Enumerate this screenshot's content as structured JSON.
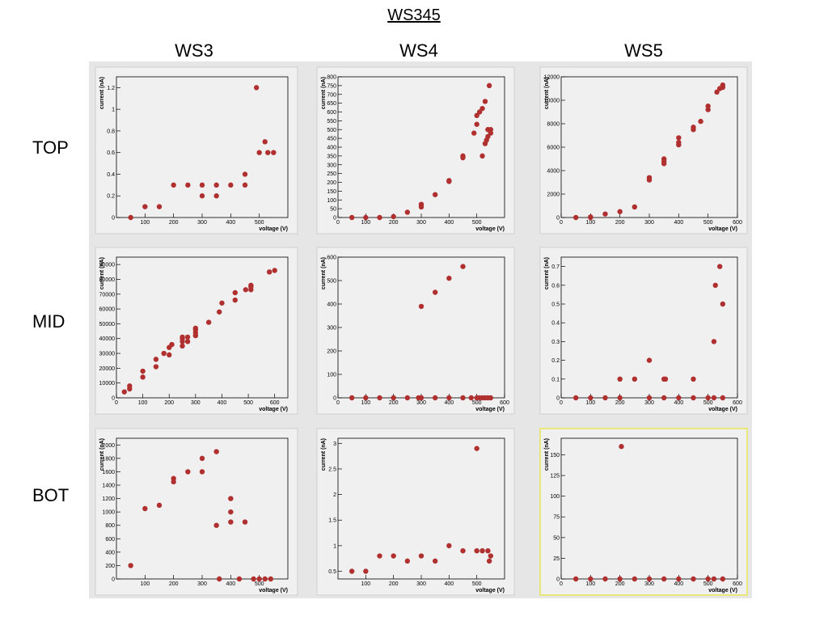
{
  "title": "WS345",
  "columns": [
    "WS3",
    "WS4",
    "WS5"
  ],
  "rows": [
    "TOP",
    "MID",
    "BOT"
  ],
  "colors": {
    "marker": "#b03030",
    "panel_bg": "#f0f0f0",
    "grid_bg": "#e6e6e6",
    "highlight": "#e8e87a"
  },
  "chart_data": [
    {
      "id": "ws3-top",
      "type": "scatter",
      "xlabel": "voltage (V)",
      "ylabel": "current (nA)",
      "xlim": [
        0,
        600
      ],
      "ylim": [
        0,
        1.3
      ],
      "xticks": [
        "100",
        "200",
        "300",
        "400",
        "500"
      ],
      "xtick_values": [
        100,
        200,
        300,
        400,
        500
      ],
      "yticks": [
        "0",
        "0.2",
        "0.4",
        "0.6",
        "0.8",
        "1",
        "1.2"
      ],
      "ytick_values": [
        0,
        0.2,
        0.4,
        0.6,
        0.8,
        1,
        1.2
      ],
      "points": [
        [
          50,
          0
        ],
        [
          100,
          0.1
        ],
        [
          150,
          0.1
        ],
        [
          200,
          0.3
        ],
        [
          250,
          0.3
        ],
        [
          300,
          0.3
        ],
        [
          300,
          0.2
        ],
        [
          350,
          0.3
        ],
        [
          350,
          0.2
        ],
        [
          400,
          0.3
        ],
        [
          450,
          0.3
        ],
        [
          450,
          0.4
        ],
        [
          490,
          1.2
        ],
        [
          500,
          0.6
        ],
        [
          520,
          0.7
        ],
        [
          530,
          0.6
        ],
        [
          550,
          0.6
        ]
      ]
    },
    {
      "id": "ws4-top",
      "type": "scatter",
      "xlabel": "voltage (V)",
      "ylabel": "current (nA)",
      "xlim": [
        0,
        600
      ],
      "ylim": [
        0,
        800
      ],
      "xticks": [
        "0",
        "100",
        "200",
        "300",
        "400",
        "500"
      ],
      "xtick_values": [
        0,
        100,
        200,
        300,
        400,
        500
      ],
      "yticks": [
        "0",
        "50",
        "100",
        "150",
        "200",
        "250",
        "300",
        "350",
        "400",
        "450",
        "500",
        "550",
        "600",
        "650",
        "700",
        "750",
        "800"
      ],
      "ytick_values": [
        0,
        50,
        100,
        150,
        200,
        250,
        300,
        350,
        400,
        450,
        500,
        550,
        600,
        650,
        700,
        750,
        800
      ],
      "points": [
        [
          50,
          0
        ],
        [
          100,
          0
        ],
        [
          150,
          0
        ],
        [
          200,
          5
        ],
        [
          250,
          30
        ],
        [
          300,
          60
        ],
        [
          300,
          75
        ],
        [
          350,
          130
        ],
        [
          400,
          205
        ],
        [
          400,
          210
        ],
        [
          450,
          340
        ],
        [
          450,
          350
        ],
        [
          490,
          480
        ],
        [
          500,
          530
        ],
        [
          500,
          580
        ],
        [
          510,
          600
        ],
        [
          520,
          350
        ],
        [
          520,
          620
        ],
        [
          530,
          420
        ],
        [
          530,
          660
        ],
        [
          535,
          440
        ],
        [
          540,
          460
        ],
        [
          540,
          500
        ],
        [
          545,
          750
        ],
        [
          550,
          480
        ],
        [
          550,
          500
        ]
      ]
    },
    {
      "id": "ws5-top",
      "type": "scatter",
      "xlabel": "voltage (V)",
      "ylabel": "current (nA)",
      "xlim": [
        0,
        600
      ],
      "ylim": [
        0,
        12000
      ],
      "xticks": [
        "0",
        "100",
        "200",
        "300",
        "400",
        "500",
        "600"
      ],
      "xtick_values": [
        0,
        100,
        200,
        300,
        400,
        500,
        600
      ],
      "yticks": [
        "0",
        "2000",
        "4000",
        "6000",
        "8000",
        "10000",
        "12000"
      ],
      "ytick_values": [
        0,
        2000,
        4000,
        6000,
        8000,
        10000,
        12000
      ],
      "points": [
        [
          50,
          0
        ],
        [
          100,
          0
        ],
        [
          100,
          50
        ],
        [
          150,
          300
        ],
        [
          200,
          500
        ],
        [
          250,
          900
        ],
        [
          300,
          3200
        ],
        [
          300,
          3400
        ],
        [
          350,
          4600
        ],
        [
          350,
          4800
        ],
        [
          350,
          5000
        ],
        [
          400,
          6200
        ],
        [
          400,
          6400
        ],
        [
          400,
          6800
        ],
        [
          450,
          7500
        ],
        [
          450,
          7700
        ],
        [
          475,
          8200
        ],
        [
          500,
          9200
        ],
        [
          500,
          9500
        ],
        [
          530,
          10700
        ],
        [
          540,
          11000
        ],
        [
          550,
          11100
        ],
        [
          550,
          11300
        ]
      ]
    },
    {
      "id": "ws3-mid",
      "type": "scatter",
      "xlabel": "voltage (V)",
      "ylabel": "current (nA)",
      "xlim": [
        0,
        650
      ],
      "ylim": [
        0,
        95000
      ],
      "xticks": [
        "0",
        "100",
        "200",
        "300",
        "400",
        "500",
        "600"
      ],
      "xtick_values": [
        0,
        100,
        200,
        300,
        400,
        500,
        600
      ],
      "yticks": [
        "0",
        "10000",
        "20000",
        "30000",
        "40000",
        "50000",
        "60000",
        "70000",
        "80000",
        "90000"
      ],
      "ytick_values": [
        0,
        10000,
        20000,
        30000,
        40000,
        50000,
        60000,
        70000,
        80000,
        90000
      ],
      "points": [
        [
          30,
          4000
        ],
        [
          50,
          6000
        ],
        [
          50,
          8000
        ],
        [
          100,
          14000
        ],
        [
          100,
          18000
        ],
        [
          150,
          21000
        ],
        [
          150,
          26000
        ],
        [
          180,
          30000
        ],
        [
          200,
          29000
        ],
        [
          200,
          34000
        ],
        [
          210,
          36000
        ],
        [
          250,
          35000
        ],
        [
          250,
          38000
        ],
        [
          250,
          40000
        ],
        [
          250,
          41000
        ],
        [
          270,
          38000
        ],
        [
          270,
          41000
        ],
        [
          300,
          42000
        ],
        [
          300,
          44000
        ],
        [
          300,
          46000
        ],
        [
          300,
          47000
        ],
        [
          350,
          51000
        ],
        [
          390,
          58000
        ],
        [
          400,
          64000
        ],
        [
          450,
          66000
        ],
        [
          450,
          71000
        ],
        [
          490,
          73000
        ],
        [
          510,
          73000
        ],
        [
          510,
          75000
        ],
        [
          510,
          76000
        ],
        [
          580,
          85000
        ],
        [
          600,
          86000
        ]
      ]
    },
    {
      "id": "ws4-mid",
      "type": "scatter",
      "xlabel": "voltage (V)",
      "ylabel": "current (nA)",
      "xlim": [
        0,
        600
      ],
      "ylim": [
        0,
        600
      ],
      "xticks": [
        "0",
        "100",
        "200",
        "300",
        "400",
        "500",
        "600"
      ],
      "xtick_values": [
        0,
        100,
        200,
        300,
        400,
        500,
        600
      ],
      "yticks": [
        "0",
        "100",
        "200",
        "300",
        "400",
        "500",
        "600"
      ],
      "ytick_values": [
        0,
        100,
        200,
        300,
        400,
        500,
        600
      ],
      "points": [
        [
          50,
          0
        ],
        [
          100,
          0
        ],
        [
          150,
          0
        ],
        [
          200,
          0
        ],
        [
          250,
          0
        ],
        [
          290,
          0
        ],
        [
          300,
          0
        ],
        [
          300,
          390
        ],
        [
          350,
          0
        ],
        [
          350,
          450
        ],
        [
          400,
          0
        ],
        [
          400,
          510
        ],
        [
          450,
          0
        ],
        [
          450,
          560
        ],
        [
          480,
          0
        ],
        [
          500,
          0
        ],
        [
          510,
          0
        ],
        [
          520,
          0
        ],
        [
          530,
          0
        ],
        [
          540,
          0
        ],
        [
          550,
          0
        ]
      ]
    },
    {
      "id": "ws5-mid",
      "type": "scatter",
      "xlabel": "voltage (V)",
      "ylabel": "current (nA)",
      "xlim": [
        0,
        600
      ],
      "ylim": [
        0,
        0.75
      ],
      "xticks": [
        "0",
        "100",
        "200",
        "300",
        "400",
        "500",
        "600"
      ],
      "xtick_values": [
        0,
        100,
        200,
        300,
        400,
        500,
        600
      ],
      "yticks": [
        "0",
        "0.1",
        "0.2",
        "0.3",
        "0.4",
        "0.5",
        "0.6",
        "0.7"
      ],
      "ytick_values": [
        0,
        0.1,
        0.2,
        0.3,
        0.4,
        0.5,
        0.6,
        0.7
      ],
      "points": [
        [
          50,
          0
        ],
        [
          100,
          0
        ],
        [
          150,
          0
        ],
        [
          200,
          0
        ],
        [
          200,
          0.1
        ],
        [
          250,
          0.1
        ],
        [
          300,
          0
        ],
        [
          300,
          0.2
        ],
        [
          350,
          0
        ],
        [
          350,
          0.1
        ],
        [
          355,
          0.1
        ],
        [
          400,
          0
        ],
        [
          450,
          0
        ],
        [
          450,
          0.1
        ],
        [
          500,
          0
        ],
        [
          520,
          0
        ],
        [
          520,
          0.3
        ],
        [
          525,
          0.6
        ],
        [
          540,
          0.7
        ],
        [
          550,
          0
        ],
        [
          550,
          0.5
        ]
      ]
    },
    {
      "id": "ws3-bot",
      "type": "scatter",
      "xlabel": "voltage (V)",
      "ylabel": "current (nA)",
      "xlim": [
        0,
        600
      ],
      "ylim": [
        0,
        2100
      ],
      "xticks": [
        "100",
        "200",
        "300",
        "400",
        "500"
      ],
      "xtick_values": [
        100,
        200,
        300,
        400,
        500
      ],
      "yticks": [
        "0",
        "200",
        "400",
        "600",
        "800",
        "1000",
        "1200",
        "1400",
        "1600",
        "1800",
        "2000"
      ],
      "ytick_values": [
        0,
        200,
        400,
        600,
        800,
        1000,
        1200,
        1400,
        1600,
        1800,
        2000
      ],
      "points": [
        [
          50,
          200
        ],
        [
          100,
          1050
        ],
        [
          150,
          1100
        ],
        [
          200,
          1450
        ],
        [
          200,
          1500
        ],
        [
          250,
          1600
        ],
        [
          300,
          1600
        ],
        [
          300,
          1800
        ],
        [
          350,
          800
        ],
        [
          350,
          1900
        ],
        [
          360,
          0
        ],
        [
          400,
          850
        ],
        [
          400,
          1000
        ],
        [
          400,
          1200
        ],
        [
          430,
          0
        ],
        [
          450,
          850
        ],
        [
          480,
          0
        ],
        [
          500,
          0
        ],
        [
          520,
          0
        ],
        [
          540,
          0
        ]
      ]
    },
    {
      "id": "ws4-bot",
      "type": "scatter",
      "xlabel": "voltage (V)",
      "ylabel": "current (nA)",
      "xlim": [
        0,
        600
      ],
      "ylim": [
        0.35,
        3.1
      ],
      "xticks": [
        "100",
        "200",
        "300",
        "400",
        "500"
      ],
      "xtick_values": [
        100,
        200,
        300,
        400,
        500
      ],
      "yticks": [
        "0.5",
        "1",
        "1.5",
        "2",
        "2.5",
        "3"
      ],
      "ytick_values": [
        0.5,
        1,
        1.5,
        2,
        2.5,
        3
      ],
      "points": [
        [
          50,
          0.5
        ],
        [
          100,
          0.5
        ],
        [
          150,
          0.8
        ],
        [
          200,
          0.8
        ],
        [
          250,
          0.7
        ],
        [
          300,
          0.8
        ],
        [
          350,
          0.7
        ],
        [
          400,
          1.0
        ],
        [
          450,
          0.9
        ],
        [
          500,
          2.9
        ],
        [
          500,
          0.9
        ],
        [
          520,
          0.9
        ],
        [
          540,
          0.9
        ],
        [
          545,
          0.7
        ],
        [
          550,
          0.8
        ]
      ]
    },
    {
      "id": "ws5-bot",
      "type": "scatter",
      "xlabel": "voltage (V)",
      "ylabel": "current (nA)",
      "xlim": [
        0,
        600
      ],
      "ylim": [
        0,
        170
      ],
      "xticks": [
        "0",
        "100",
        "200",
        "300",
        "400",
        "500",
        "600"
      ],
      "xtick_values": [
        0,
        100,
        200,
        300,
        400,
        500,
        600
      ],
      "yticks": [
        "0",
        "25",
        "50",
        "75",
        "100",
        "125",
        "150"
      ],
      "ytick_values": [
        0,
        25,
        50,
        75,
        100,
        125,
        150
      ],
      "points": [
        [
          50,
          0
        ],
        [
          100,
          0
        ],
        [
          150,
          0
        ],
        [
          200,
          0
        ],
        [
          205,
          160
        ],
        [
          250,
          0
        ],
        [
          300,
          0
        ],
        [
          350,
          0
        ],
        [
          400,
          0
        ],
        [
          450,
          0
        ],
        [
          500,
          0
        ],
        [
          520,
          0
        ],
        [
          550,
          0
        ]
      ]
    }
  ]
}
